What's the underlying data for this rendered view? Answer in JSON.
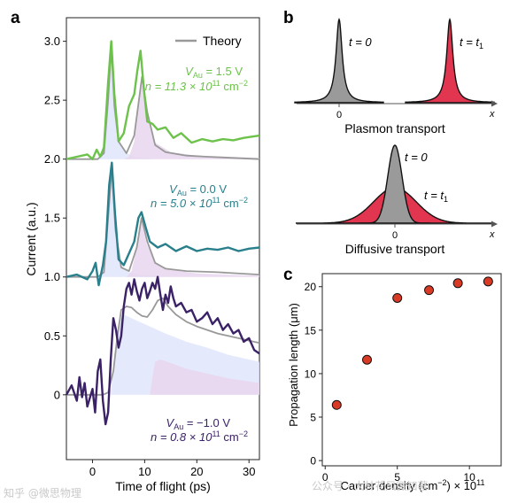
{
  "watermarks": [
    "知乎 @微思物理",
    "公众号 · 大林花风微知著"
  ],
  "colors": {
    "green": "#6cc24a",
    "teal": "#2a7f8c",
    "purple": "#3b2266",
    "theory": "#999999",
    "fill_blue": "#dfe5fb",
    "fill_purple": "#e9d6ef",
    "plasmon_red": "#e2354f",
    "gaussian_gray": "#9a9a9a",
    "dot_red": "#d93a26"
  },
  "chart_data": [
    {
      "panel": "a",
      "type": "line",
      "title": "",
      "xlabel": "Time of flight (ps)",
      "ylabel": "Current (a.u.)",
      "xlim": [
        -5,
        32
      ],
      "ylim": [
        -0.55,
        3.2
      ],
      "xticks": [
        0,
        10,
        20,
        30
      ],
      "yticks": [
        0,
        0.5,
        1.0,
        1.5,
        2.0,
        2.5,
        3.0
      ],
      "ytick_labels": [
        "0",
        "0.5",
        "1.0",
        "1.5",
        "2.0",
        "2.5",
        "3.0"
      ],
      "legend": {
        "label": "Theory",
        "position": "top-right"
      },
      "annotations": [
        {
          "line1": "V",
          "sub1": "Au",
          "rest1": " = 1.5 V",
          "line2": "n = 11.3 × 10",
          "sup2": "11",
          "rest2": " cm",
          "sup3": "−2",
          "color_key": "green"
        },
        {
          "line1": "V",
          "sub1": "Au",
          "rest1": " = 0.0 V",
          "line2": "n = 5.0 × 10",
          "sup2": "11",
          "rest2": " cm",
          "sup3": "−2",
          "color_key": "teal"
        },
        {
          "line1": "V",
          "sub1": "Au",
          "rest1": " = −1.0 V",
          "line2": "n = 0.8 × 10",
          "sup2": "11",
          "rest2": " cm",
          "sup3": "−2",
          "color_key": "purple"
        }
      ],
      "series": [
        {
          "offset": 2.0,
          "color_key": "green",
          "data": [
            [
              -5,
              2.0
            ],
            [
              -3,
              2.02
            ],
            [
              -1,
              2.04
            ],
            [
              0,
              2.0
            ],
            [
              0.8,
              2.08
            ],
            [
              1.5,
              2.02
            ],
            [
              2.2,
              2.1
            ],
            [
              3,
              2.65
            ],
            [
              3.6,
              3.0
            ],
            [
              4.2,
              2.55
            ],
            [
              5,
              2.15
            ],
            [
              6,
              2.22
            ],
            [
              7,
              2.45
            ],
            [
              8,
              2.55
            ],
            [
              8.6,
              2.75
            ],
            [
              9.2,
              2.92
            ],
            [
              9.8,
              2.62
            ],
            [
              10.5,
              2.32
            ],
            [
              11.5,
              2.3
            ],
            [
              12.5,
              2.25
            ],
            [
              14,
              2.27
            ],
            [
              15.5,
              2.18
            ],
            [
              17,
              2.22
            ],
            [
              19,
              2.14
            ],
            [
              21,
              2.17
            ],
            [
              23,
              2.15
            ],
            [
              25,
              2.17
            ],
            [
              27,
              2.16
            ],
            [
              29,
              2.18
            ],
            [
              32,
              2.2
            ]
          ]
        },
        {
          "offset": 2.0,
          "theory": true,
          "color_key": "theory",
          "data": [
            [
              -5,
              2.0
            ],
            [
              1,
              2.0
            ],
            [
              2.2,
              2.05
            ],
            [
              3,
              2.5
            ],
            [
              3.6,
              2.95
            ],
            [
              4.2,
              2.45
            ],
            [
              5,
              2.15
            ],
            [
              6.5,
              2.05
            ],
            [
              8,
              2.2
            ],
            [
              9.5,
              2.7
            ],
            [
              10.5,
              2.4
            ],
            [
              12,
              2.12
            ],
            [
              14,
              2.06
            ],
            [
              18,
              2.03
            ],
            [
              22,
              2.02
            ],
            [
              32,
              2.0
            ]
          ]
        },
        {
          "offset": 1.0,
          "color_key": "teal",
          "data": [
            [
              -5,
              1.0
            ],
            [
              -3,
              1.02
            ],
            [
              -1,
              0.98
            ],
            [
              0,
              1.05
            ],
            [
              0.6,
              1.12
            ],
            [
              1.2,
              0.93
            ],
            [
              2,
              1.1
            ],
            [
              2.6,
              1.3
            ],
            [
              3.2,
              1.78
            ],
            [
              3.7,
              1.97
            ],
            [
              4.3,
              1.55
            ],
            [
              5,
              1.15
            ],
            [
              6,
              1.1
            ],
            [
              7,
              1.2
            ],
            [
              8,
              1.3
            ],
            [
              8.8,
              1.5
            ],
            [
              9.4,
              1.55
            ],
            [
              10.2,
              1.42
            ],
            [
              11,
              1.3
            ],
            [
              12.5,
              1.25
            ],
            [
              14,
              1.28
            ],
            [
              16,
              1.22
            ],
            [
              18,
              1.26
            ],
            [
              20,
              1.22
            ],
            [
              22,
              1.24
            ],
            [
              24,
              1.23
            ],
            [
              26,
              1.25
            ],
            [
              28,
              1.22
            ],
            [
              30,
              1.24
            ],
            [
              32,
              1.25
            ]
          ]
        },
        {
          "offset": 1.0,
          "theory": true,
          "color_key": "theory",
          "data": [
            [
              -5,
              1.0
            ],
            [
              1,
              1.0
            ],
            [
              2.2,
              1.04
            ],
            [
              3,
              1.5
            ],
            [
              3.7,
              1.92
            ],
            [
              4.4,
              1.4
            ],
            [
              5.5,
              1.08
            ],
            [
              7,
              1.05
            ],
            [
              8.5,
              1.25
            ],
            [
              9.4,
              1.5
            ],
            [
              10.5,
              1.3
            ],
            [
              12,
              1.12
            ],
            [
              14,
              1.07
            ],
            [
              18,
              1.05
            ],
            [
              24,
              1.04
            ],
            [
              32,
              1.02
            ]
          ]
        },
        {
          "offset": 0.0,
          "color_key": "purple",
          "data": [
            [
              -5,
              0.0
            ],
            [
              -4,
              0.08
            ],
            [
              -3,
              -0.05
            ],
            [
              -2.5,
              0.15
            ],
            [
              -2,
              -0.02
            ],
            [
              -1.5,
              0.1
            ],
            [
              -1,
              -0.1
            ],
            [
              0,
              0.05
            ],
            [
              0.5,
              -0.15
            ],
            [
              1,
              0.2
            ],
            [
              1.5,
              0.3
            ],
            [
              2,
              -0.05
            ],
            [
              2.5,
              -0.25
            ],
            [
              3,
              -0.15
            ],
            [
              3.5,
              0.3
            ],
            [
              4,
              0.65
            ],
            [
              4.5,
              0.55
            ],
            [
              5,
              0.4
            ],
            [
              5.5,
              0.5
            ],
            [
              6,
              0.75
            ],
            [
              6.5,
              0.9
            ],
            [
              7,
              0.95
            ],
            [
              7.5,
              0.85
            ],
            [
              8,
              0.98
            ],
            [
              8.5,
              0.88
            ],
            [
              9,
              0.8
            ],
            [
              9.5,
              0.9
            ],
            [
              10,
              0.95
            ],
            [
              10.5,
              0.82
            ],
            [
              11,
              0.88
            ],
            [
              11.5,
              0.95
            ],
            [
              12,
              0.9
            ],
            [
              12.5,
              1.0
            ],
            [
              13,
              0.85
            ],
            [
              13.5,
              0.72
            ],
            [
              14,
              0.85
            ],
            [
              14.5,
              0.78
            ],
            [
              15,
              0.92
            ],
            [
              15.5,
              0.82
            ],
            [
              16,
              0.75
            ],
            [
              17,
              0.78
            ],
            [
              18,
              0.7
            ],
            [
              19,
              0.72
            ],
            [
              20,
              0.62
            ],
            [
              21,
              0.65
            ],
            [
              22,
              0.7
            ],
            [
              23,
              0.6
            ],
            [
              24,
              0.65
            ],
            [
              25,
              0.55
            ],
            [
              26,
              0.6
            ],
            [
              27,
              0.52
            ],
            [
              28,
              0.55
            ],
            [
              29,
              0.45
            ],
            [
              30,
              0.48
            ],
            [
              31,
              0.38
            ],
            [
              32,
              0.35
            ]
          ]
        },
        {
          "offset": 0.0,
          "theory": true,
          "color_key": "theory",
          "data": [
            [
              -5,
              0.0
            ],
            [
              2,
              0.0
            ],
            [
              3,
              0.02
            ],
            [
              4,
              0.2
            ],
            [
              4.8,
              0.5
            ],
            [
              5.5,
              0.72
            ],
            [
              6.5,
              0.75
            ],
            [
              7.5,
              0.74
            ],
            [
              8.5,
              0.7
            ],
            [
              9.5,
              0.67
            ],
            [
              10.5,
              0.66
            ],
            [
              11.5,
              0.72
            ],
            [
              12.5,
              0.8
            ],
            [
              13.5,
              0.82
            ],
            [
              14.5,
              0.75
            ],
            [
              16,
              0.68
            ],
            [
              18,
              0.62
            ],
            [
              20,
              0.58
            ],
            [
              22,
              0.55
            ],
            [
              24,
              0.52
            ],
            [
              26,
              0.5
            ],
            [
              28,
              0.48
            ],
            [
              30,
              0.46
            ],
            [
              32,
              0.44
            ]
          ]
        }
      ],
      "fills": [
        {
          "offset": 2.0,
          "color_key": "fill_blue",
          "data": [
            [
              1,
              2.0
            ],
            [
              2.4,
              2.1
            ],
            [
              3,
              2.55
            ],
            [
              3.6,
              2.95
            ],
            [
              4.3,
              2.45
            ],
            [
              5.2,
              2.15
            ],
            [
              6.5,
              2.05
            ],
            [
              8,
              2.02
            ],
            [
              12,
              2.0
            ]
          ]
        },
        {
          "offset": 2.0,
          "color_key": "fill_purple",
          "data": [
            [
              6,
              2.0
            ],
            [
              7,
              2.02
            ],
            [
              8,
              2.15
            ],
            [
              9,
              2.55
            ],
            [
              9.6,
              2.65
            ],
            [
              10.5,
              2.35
            ],
            [
              12,
              2.14
            ],
            [
              15,
              2.06
            ],
            [
              20,
              2.03
            ],
            [
              32,
              2.01
            ]
          ]
        },
        {
          "offset": 1.0,
          "color_key": "fill_blue",
          "data": [
            [
              1,
              1.0
            ],
            [
              2.4,
              1.08
            ],
            [
              3,
              1.5
            ],
            [
              3.7,
              1.9
            ],
            [
              4.4,
              1.4
            ],
            [
              5.5,
              1.1
            ],
            [
              7,
              1.04
            ],
            [
              9,
              1.02
            ],
            [
              14,
              1.0
            ]
          ]
        },
        {
          "offset": 1.0,
          "color_key": "fill_purple",
          "data": [
            [
              6.5,
              1.0
            ],
            [
              7.5,
              1.05
            ],
            [
              8.5,
              1.25
            ],
            [
              9.4,
              1.46
            ],
            [
              10.4,
              1.28
            ],
            [
              12,
              1.12
            ],
            [
              15,
              1.06
            ],
            [
              20,
              1.03
            ],
            [
              32,
              1.01
            ]
          ]
        },
        {
          "offset": 0.0,
          "color_key": "fill_blue",
          "data": [
            [
              3.5,
              0.0
            ],
            [
              4.2,
              0.35
            ],
            [
              5,
              0.62
            ],
            [
              6,
              0.68
            ],
            [
              8,
              0.64
            ],
            [
              10,
              0.6
            ],
            [
              14,
              0.52
            ],
            [
              18,
              0.45
            ],
            [
              22,
              0.4
            ],
            [
              26,
              0.34
            ],
            [
              32,
              0.28
            ]
          ]
        },
        {
          "offset": 0.0,
          "color_key": "fill_purple",
          "data": [
            [
              11,
              0.0
            ],
            [
              11.5,
              0.15
            ],
            [
              12,
              0.28
            ],
            [
              13,
              0.3
            ],
            [
              15,
              0.27
            ],
            [
              18,
              0.22
            ],
            [
              22,
              0.18
            ],
            [
              26,
              0.14
            ],
            [
              32,
              0.1
            ]
          ]
        }
      ]
    },
    {
      "panel": "b",
      "type": "diagram",
      "title": "",
      "plasmon": {
        "caption": "Plasmon transport",
        "label_t0": "t = 0",
        "label_t1": "t = t",
        "sub1": "1",
        "xtick": "0",
        "xaxis": "x"
      },
      "diffusive": {
        "caption": "Diffusive transport",
        "label_t0": "t = 0",
        "label_t1": "t = t",
        "sub1": "1",
        "xtick": "0",
        "xaxis": "x"
      }
    },
    {
      "panel": "c",
      "type": "scatter",
      "title": "",
      "xlabel": "Carrier density (cm",
      "xlabel_sup": "−2",
      "xlabel_rest": ") × 10",
      "xlabel_sup2": "11",
      "ylabel": "Propagation length (μm)",
      "xlim": [
        -0.2,
        12.2
      ],
      "ylim": [
        -0.6,
        21.5
      ],
      "xticks": [
        0,
        5,
        10
      ],
      "yticks": [
        0,
        5,
        10,
        15,
        20
      ],
      "points": [
        [
          0.8,
          6.4
        ],
        [
          2.9,
          11.6
        ],
        [
          5.0,
          18.7
        ],
        [
          7.2,
          19.6
        ],
        [
          9.2,
          20.4
        ],
        [
          11.3,
          20.6
        ]
      ]
    }
  ]
}
